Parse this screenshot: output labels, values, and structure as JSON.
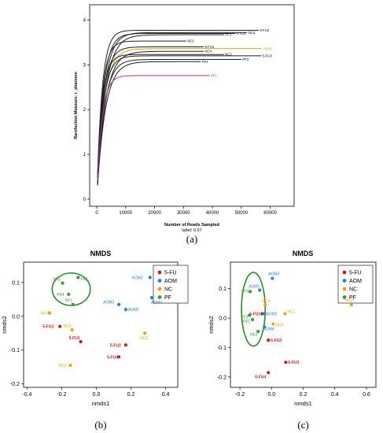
{
  "chart_data": [
    {
      "type": "line",
      "xlabel": "Number of Reads Sampled",
      "ylabel": "Rarefaction Measure: r_shannon",
      "caption": "label: 0.97",
      "panel_label": "(a)",
      "xlim": [
        0,
        65000
      ],
      "ylim": [
        0,
        4.2
      ],
      "xticks": [
        "0",
        "10000",
        "20000",
        "30000",
        "40000",
        "50000",
        "60000"
      ],
      "yticks": [
        "0",
        "1",
        "2",
        "3",
        "4"
      ],
      "series": [
        {
          "name": "5-FU2",
          "end_x": 56000,
          "plateau": 3.77,
          "color": "#222222"
        },
        {
          "name": "5-FU4",
          "end_x": 48000,
          "plateau": 3.7,
          "color": "#222222"
        },
        {
          "name": "NC3",
          "end_x": 52000,
          "plateau": 3.72,
          "color": "#222222"
        },
        {
          "name": "PF3",
          "end_x": 44000,
          "plateau": 3.67,
          "color": "#222222"
        },
        {
          "name": "NC1",
          "end_x": 31000,
          "plateau": 3.53,
          "color": "#222222"
        },
        {
          "name": "5-FU1",
          "end_x": 37000,
          "plateau": 3.4,
          "color": "#222222"
        },
        {
          "name": "AOM1",
          "end_x": 57000,
          "plateau": 3.36,
          "color": "#d4a017"
        },
        {
          "name": "NC4",
          "end_x": 37000,
          "plateau": 3.3,
          "color": "#222222"
        },
        {
          "name": "NC2",
          "end_x": 44000,
          "plateau": 3.23,
          "color": "#222222"
        },
        {
          "name": "5-FU3",
          "end_x": 57000,
          "plateau": 3.2,
          "color": "#222222"
        },
        {
          "name": "PF3",
          "end_x": 50000,
          "plateau": 3.12,
          "color": "#222222"
        },
        {
          "name": "PF4",
          "end_x": 36000,
          "plateau": 3.07,
          "color": "#222222"
        },
        {
          "name": "PF2",
          "end_x": 39000,
          "plateau": 2.76,
          "color": "#a03aa0"
        }
      ]
    },
    {
      "type": "scatter",
      "title": "NMDS",
      "xlabel": "nmds1",
      "ylabel": "nmds2",
      "panel_label": "(b)",
      "xlim": [
        -0.42,
        0.47
      ],
      "ylim": [
        -0.21,
        0.16
      ],
      "xticks": [
        -0.4,
        -0.2,
        0.0,
        0.2,
        0.4
      ],
      "xtick_labels": [
        "-0.4",
        "-0.2",
        "0.0",
        "0.2",
        "0.4"
      ],
      "yticks": [
        -0.2,
        -0.1,
        0.0,
        0.1
      ],
      "ytick_labels": [
        "-0.2",
        "-0.1",
        "0.0",
        "0.1"
      ],
      "legend": [
        {
          "name": "5-FU",
          "color": "#c81e1e"
        },
        {
          "name": "AOM",
          "color": "#2f7fc1"
        },
        {
          "name": "NC",
          "color": "#e8a317"
        },
        {
          "name": "PF",
          "color": "#3a9a3a"
        }
      ],
      "ellipse": {
        "cx": -0.145,
        "cy": 0.08,
        "rx": 0.11,
        "ry": 0.048,
        "color": "#2e8b2e"
      },
      "points": [
        {
          "label": "5-FU1",
          "x": -0.09,
          "y": -0.075,
          "group": "5-FU"
        },
        {
          "label": "5-FU2",
          "x": 0.17,
          "y": -0.085,
          "group": "5-FU"
        },
        {
          "label": "5-FU3",
          "x": -0.21,
          "y": -0.03,
          "group": "5-FU"
        },
        {
          "label": "5-FU4",
          "x": 0.13,
          "y": -0.12,
          "group": "5-FU"
        },
        {
          "label": "AOM1",
          "x": 0.17,
          "y": 0.02,
          "group": "AOM"
        },
        {
          "label": "AOM2",
          "x": 0.31,
          "y": 0.115,
          "group": "AOM"
        },
        {
          "label": "AOM3",
          "x": 0.13,
          "y": 0.035,
          "group": "AOM"
        },
        {
          "label": "AOM4",
          "x": 0.32,
          "y": 0.055,
          "group": "AOM"
        },
        {
          "label": "NC1",
          "x": 0.28,
          "y": -0.05,
          "group": "NC"
        },
        {
          "label": "NC2",
          "x": -0.15,
          "y": -0.145,
          "group": "NC"
        },
        {
          "label": "NC3",
          "x": -0.14,
          "y": -0.04,
          "group": "NC"
        },
        {
          "label": "NC4",
          "x": -0.27,
          "y": 0.01,
          "group": "NC"
        },
        {
          "label": "PF1",
          "x": -0.135,
          "y": 0.035,
          "group": "PF"
        },
        {
          "label": "PF2",
          "x": -0.105,
          "y": 0.115,
          "group": "PF"
        },
        {
          "label": "PF3",
          "x": -0.195,
          "y": 0.098,
          "group": "PF"
        },
        {
          "label": "PF4",
          "x": -0.16,
          "y": 0.065,
          "group": "PF"
        }
      ]
    },
    {
      "type": "scatter",
      "title": "NMDS",
      "xlabel": "nmds1",
      "ylabel": "nmds2",
      "panel_label": "(c)",
      "xlim": [
        -0.26,
        0.66
      ],
      "ylim": [
        -0.235,
        0.19
      ],
      "xticks": [
        -0.2,
        0.0,
        0.2,
        0.4,
        0.6
      ],
      "xtick_labels": [
        "-0.2",
        "0.0",
        "0.2",
        "0.4",
        "0.6"
      ],
      "yticks": [
        -0.2,
        -0.1,
        0.0,
        0.1
      ],
      "ytick_labels": [
        "-0.2",
        "-0.1",
        "0.0",
        "0.1"
      ],
      "legend": [
        {
          "name": "5-FU",
          "color": "#c81e1e"
        },
        {
          "name": "AOM",
          "color": "#2f7fc1"
        },
        {
          "name": "NC",
          "color": "#e8a317"
        },
        {
          "name": "PF",
          "color": "#3a9a3a"
        }
      ],
      "ellipse": {
        "cx": -0.115,
        "cy": 0.03,
        "rx": 0.075,
        "ry": 0.125,
        "color": "#2e8b2e"
      },
      "points": [
        {
          "label": "5-FU1",
          "x": -0.06,
          "y": 0.015,
          "group": "5-FU"
        },
        {
          "label": "5-FU2",
          "x": -0.02,
          "y": -0.075,
          "group": "5-FU"
        },
        {
          "label": "5-FU3",
          "x": 0.09,
          "y": -0.15,
          "group": "5-FU"
        },
        {
          "label": "5-FU4",
          "x": -0.02,
          "y": -0.185,
          "group": "5-FU"
        },
        {
          "label": "AOM1",
          "x": -0.075,
          "y": 0.095,
          "group": "AOM"
        },
        {
          "label": "AOM2",
          "x": -0.045,
          "y": 0.015,
          "group": "AOM"
        },
        {
          "label": "AOM3",
          "x": 0.005,
          "y": 0.135,
          "group": "AOM"
        },
        {
          "label": "AOM4",
          "x": -0.045,
          "y": -0.03,
          "group": "AOM"
        },
        {
          "label": "NC1",
          "x": 0.085,
          "y": 0.015,
          "group": "NC"
        },
        {
          "label": "NC2",
          "x": 0.505,
          "y": 0.045,
          "group": "NC"
        },
        {
          "label": "NC3",
          "x": 0.01,
          "y": -0.02,
          "group": "NC"
        },
        {
          "label": "NC4",
          "x": -0.04,
          "y": 0.045,
          "group": "NC"
        },
        {
          "label": "PF1",
          "x": -0.12,
          "y": -0.005,
          "group": "PF"
        },
        {
          "label": "PF2",
          "x": -0.085,
          "y": -0.045,
          "group": "PF"
        },
        {
          "label": "PF3",
          "x": -0.14,
          "y": 0.01,
          "group": "PF"
        },
        {
          "label": "PF4",
          "x": -0.135,
          "y": 0.09,
          "group": "PF"
        }
      ]
    }
  ]
}
